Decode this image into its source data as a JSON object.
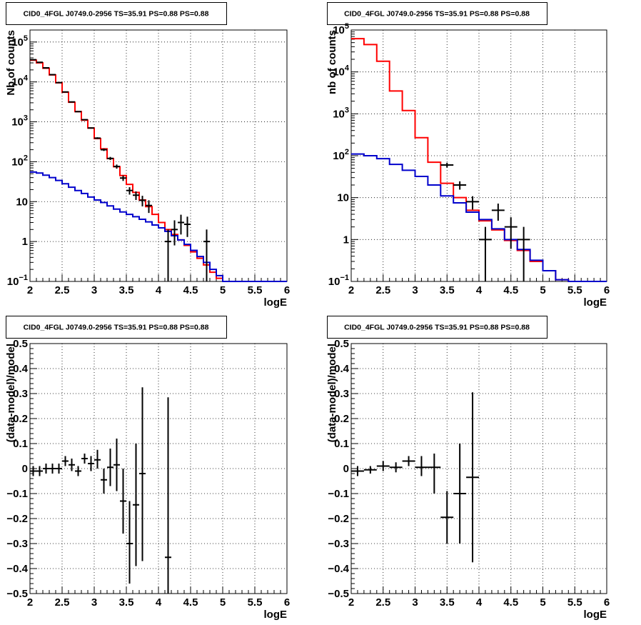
{
  "canvas": {
    "background": "#ffffff"
  },
  "chart_data": [
    {
      "type": "line",
      "title": "CID0_4FGL J0749.0-2956 TS=35.91 PS=0.88 PS=0.88",
      "xlabel": "logE",
      "ylabel": "Nb of counts",
      "xlim": [
        2,
        6
      ],
      "ylim": [
        0.1,
        200000
      ],
      "yscale": "log",
      "grid": true,
      "x_ticks": [
        "2",
        "2.5",
        "3",
        "3.5",
        "4",
        "4.5",
        "5",
        "5.5",
        "6"
      ],
      "y_ticks": [
        {
          "v": 0.1,
          "base": "10",
          "exp": "−1"
        },
        {
          "v": 1,
          "text": "1"
        },
        {
          "v": 10,
          "text": "10"
        },
        {
          "v": 100,
          "base": "10",
          "exp": "2"
        },
        {
          "v": 1000,
          "base": "10",
          "exp": "3"
        },
        {
          "v": 10000,
          "base": "10",
          "exp": "4"
        },
        {
          "v": 100000,
          "base": "10",
          "exp": "5"
        }
      ],
      "series": [
        {
          "color": "#ff0000",
          "style": "step",
          "bin_edges": [
            2,
            2.1,
            2.2,
            2.3,
            2.4,
            2.5,
            2.6,
            2.7,
            2.8,
            2.9,
            3,
            3.1,
            3.2,
            3.3,
            3.4,
            3.5,
            3.6,
            3.7,
            3.8,
            3.9,
            4,
            4.1,
            4.2,
            4.3,
            4.4,
            4.5,
            4.6,
            4.7,
            4.8,
            4.9,
            5,
            5.1,
            5.2,
            5.3,
            5.4,
            5.5,
            5.6,
            5.7,
            5.8,
            5.9,
            6
          ],
          "values": [
            35000,
            30000,
            22000,
            15000,
            9500,
            5500,
            3100,
            1800,
            1100,
            700,
            380,
            210,
            120,
            75,
            45,
            27,
            17,
            11,
            7.5,
            4.8,
            3.0,
            2.0,
            1.5,
            1.1,
            0.8,
            0.55,
            0.38,
            0.26,
            0.17,
            0.12,
            0.1,
            0.1,
            0.1,
            0.1,
            0.1,
            0.1,
            0.1,
            0.1,
            0.1,
            0.1
          ]
        },
        {
          "color": "#0000cc",
          "style": "step",
          "bin_edges": [
            2,
            2.1,
            2.2,
            2.3,
            2.4,
            2.5,
            2.6,
            2.7,
            2.8,
            2.9,
            3,
            3.1,
            3.2,
            3.3,
            3.4,
            3.5,
            3.6,
            3.7,
            3.8,
            3.9,
            4,
            4.1,
            4.2,
            4.3,
            4.4,
            4.5,
            4.6,
            4.7,
            4.8,
            4.9,
            5,
            5.1,
            5.2,
            5.3,
            5.4,
            5.5,
            5.6,
            5.7,
            5.8,
            5.9,
            6
          ],
          "values": [
            55,
            52,
            46,
            40,
            34,
            28,
            23,
            19,
            16,
            13,
            11,
            9.5,
            7.8,
            6.5,
            5.5,
            4.8,
            4.2,
            3.6,
            3.1,
            2.6,
            2.2,
            1.8,
            1.4,
            1.1,
            0.85,
            0.6,
            0.42,
            0.3,
            0.2,
            0.14,
            0.1,
            0.1,
            0.1,
            0.1,
            0.1,
            0.1,
            0.1,
            0.1,
            0.1,
            0.1
          ]
        },
        {
          "color": "#000000",
          "style": "points",
          "points": [
            {
              "x": 2.05,
              "y": 36000,
              "xerr": 0.05,
              "ylo": 35800,
              "yhi": 36200
            },
            {
              "x": 2.15,
              "y": 31000,
              "xerr": 0.05,
              "ylo": 30800,
              "yhi": 31200
            },
            {
              "x": 2.25,
              "y": 22500,
              "xerr": 0.05,
              "ylo": 22300,
              "yhi": 22700
            },
            {
              "x": 2.35,
              "y": 15200,
              "xerr": 0.05,
              "ylo": 15000,
              "yhi": 15400
            },
            {
              "x": 2.45,
              "y": 9600,
              "xerr": 0.05,
              "ylo": 9500,
              "yhi": 9700
            },
            {
              "x": 2.55,
              "y": 5600,
              "xerr": 0.05,
              "ylo": 5520,
              "yhi": 5680
            },
            {
              "x": 2.65,
              "y": 3150,
              "xerr": 0.05,
              "ylo": 3090,
              "yhi": 3210
            },
            {
              "x": 2.75,
              "y": 1800,
              "xerr": 0.05,
              "ylo": 1760,
              "yhi": 1840
            },
            {
              "x": 2.85,
              "y": 1130,
              "xerr": 0.05,
              "ylo": 1100,
              "yhi": 1160
            },
            {
              "x": 2.95,
              "y": 700,
              "xerr": 0.05,
              "ylo": 675,
              "yhi": 725
            },
            {
              "x": 3.05,
              "y": 390,
              "xerr": 0.05,
              "ylo": 370,
              "yhi": 410
            },
            {
              "x": 3.15,
              "y": 200,
              "xerr": 0.05,
              "ylo": 186,
              "yhi": 214
            },
            {
              "x": 3.25,
              "y": 121,
              "xerr": 0.05,
              "ylo": 110,
              "yhi": 132
            },
            {
              "x": 3.35,
              "y": 76,
              "xerr": 0.05,
              "ylo": 67,
              "yhi": 85
            },
            {
              "x": 3.45,
              "y": 39,
              "xerr": 0.05,
              "ylo": 33,
              "yhi": 45
            },
            {
              "x": 3.55,
              "y": 19,
              "xerr": 0.05,
              "ylo": 15,
              "yhi": 23
            },
            {
              "x": 3.65,
              "y": 14.5,
              "xerr": 0.05,
              "ylo": 11,
              "yhi": 18
            },
            {
              "x": 3.75,
              "y": 10.8,
              "xerr": 0.05,
              "ylo": 7.6,
              "yhi": 14
            },
            {
              "x": 3.85,
              "y": 8,
              "xerr": 0.05,
              "ylo": 5.2,
              "yhi": 10.8
            },
            {
              "x": 4.15,
              "y": 1,
              "xerr": 0.05,
              "ylo": 0.1,
              "yhi": 2.0
            },
            {
              "x": 4.25,
              "y": 2,
              "xerr": 0.05,
              "ylo": 0.8,
              "yhi": 3.4
            },
            {
              "x": 4.35,
              "y": 3,
              "xerr": 0.05,
              "ylo": 1.5,
              "yhi": 4.7
            },
            {
              "x": 4.45,
              "y": 2.7,
              "xerr": 0.05,
              "ylo": 1.3,
              "yhi": 4.2
            },
            {
              "x": 4.75,
              "y": 1,
              "xerr": 0.05,
              "ylo": 0.1,
              "yhi": 2.0
            }
          ]
        }
      ]
    },
    {
      "type": "line",
      "title": "CID0_4FGL J0749.0-2956 TS=35.91 PS=0.88 PS=0.88",
      "xlabel": "logE",
      "ylabel": "nb of counts",
      "xlim": [
        2,
        6
      ],
      "ylim": [
        0.1,
        100000
      ],
      "yscale": "log",
      "grid": true,
      "x_ticks": [
        "2",
        "2.5",
        "3",
        "3.5",
        "4",
        "4.5",
        "5",
        "5.5",
        "6"
      ],
      "y_ticks": [
        {
          "v": 0.1,
          "base": "10",
          "exp": "−1"
        },
        {
          "v": 1,
          "text": "1"
        },
        {
          "v": 10,
          "text": "10"
        },
        {
          "v": 100,
          "base": "10",
          "exp": "2"
        },
        {
          "v": 1000,
          "base": "10",
          "exp": "3"
        },
        {
          "v": 10000,
          "base": "10",
          "exp": "4"
        },
        {
          "v": 100000,
          "base": "10",
          "exp": "5"
        }
      ],
      "series": [
        {
          "color": "#ff0000",
          "style": "step",
          "bin_edges": [
            2,
            2.2,
            2.4,
            2.6,
            2.8,
            3,
            3.2,
            3.4,
            3.6,
            3.8,
            4,
            4.2,
            4.4,
            4.6,
            4.8,
            5,
            5.2,
            5.4,
            5.6,
            5.8,
            6
          ],
          "values": [
            62000,
            45000,
            18000,
            3500,
            1200,
            270,
            70,
            22,
            10,
            5,
            2.8,
            1.7,
            0.95,
            0.55,
            0.3,
            0.18,
            0.11,
            0.1,
            0.1,
            0.1
          ]
        },
        {
          "color": "#0000cc",
          "style": "step",
          "bin_edges": [
            2,
            2.2,
            2.4,
            2.6,
            2.8,
            3,
            3.2,
            3.4,
            3.6,
            3.8,
            4,
            4.2,
            4.4,
            4.6,
            4.8,
            5,
            5.2,
            5.4,
            5.6,
            5.8,
            6
          ],
          "values": [
            110,
            100,
            85,
            62,
            45,
            32,
            20,
            11,
            7.5,
            4.5,
            3.0,
            1.8,
            1.0,
            0.58,
            0.32,
            0.18,
            0.11,
            0.1,
            0.1,
            0.1
          ]
        },
        {
          "color": "#000000",
          "style": "points",
          "points": [
            {
              "x": 3.5,
              "y": 60,
              "xerr": 0.1,
              "ylo": 52,
              "yhi": 68
            },
            {
              "x": 3.7,
              "y": 20,
              "xerr": 0.1,
              "ylo": 15.5,
              "yhi": 24.5
            },
            {
              "x": 3.9,
              "y": 8,
              "xerr": 0.1,
              "ylo": 5.2,
              "yhi": 10.8
            },
            {
              "x": 4.1,
              "y": 1,
              "xerr": 0.1,
              "ylo": 0.1,
              "yhi": 2.0
            },
            {
              "x": 4.3,
              "y": 5,
              "xerr": 0.1,
              "ylo": 2.8,
              "yhi": 7.2
            },
            {
              "x": 4.5,
              "y": 2,
              "xerr": 0.1,
              "ylo": 0.6,
              "yhi": 3.4
            },
            {
              "x": 4.7,
              "y": 1,
              "xerr": 0.1,
              "ylo": 0.1,
              "yhi": 2.0
            }
          ]
        }
      ]
    },
    {
      "type": "scatter",
      "title": "CID0_4FGL J0749.0-2956 TS=35.91 PS=0.88 PS=0.88",
      "xlabel": "logE",
      "ylabel": "(data-model)/model",
      "xlim": [
        2,
        6
      ],
      "ylim": [
        -0.5,
        0.5
      ],
      "yscale": "linear",
      "grid": true,
      "x_ticks": [
        "2",
        "2.5",
        "3",
        "3.5",
        "4",
        "4.5",
        "5",
        "5.5",
        "6"
      ],
      "y_ticks": [
        {
          "v": -0.5,
          "text": "−0.5"
        },
        {
          "v": -0.4,
          "text": "−0.4"
        },
        {
          "v": -0.3,
          "text": "−0.3"
        },
        {
          "v": -0.2,
          "text": "−0.2"
        },
        {
          "v": -0.1,
          "text": "−0.1"
        },
        {
          "v": 0,
          "text": "0"
        },
        {
          "v": 0.1,
          "text": "0.1"
        },
        {
          "v": 0.2,
          "text": "0.2"
        },
        {
          "v": 0.3,
          "text": "0.3"
        },
        {
          "v": 0.4,
          "text": "0.4"
        },
        {
          "v": 0.5,
          "text": "0.5"
        }
      ],
      "series": [
        {
          "color": "#000000",
          "style": "points",
          "points": [
            {
              "x": 2.05,
              "y": -0.01,
              "xerr": 0.05,
              "ylo": -0.03,
              "yhi": 0.01
            },
            {
              "x": 2.15,
              "y": -0.01,
              "xerr": 0.05,
              "ylo": -0.03,
              "yhi": 0.01
            },
            {
              "x": 2.25,
              "y": 0.0,
              "xerr": 0.05,
              "ylo": -0.02,
              "yhi": 0.02
            },
            {
              "x": 2.35,
              "y": 0.0,
              "xerr": 0.05,
              "ylo": -0.02,
              "yhi": 0.02
            },
            {
              "x": 2.45,
              "y": 0.0,
              "xerr": 0.05,
              "ylo": -0.02,
              "yhi": 0.02
            },
            {
              "x": 2.55,
              "y": 0.03,
              "xerr": 0.05,
              "ylo": 0.01,
              "yhi": 0.05
            },
            {
              "x": 2.65,
              "y": 0.015,
              "xerr": 0.05,
              "ylo": -0.01,
              "yhi": 0.04
            },
            {
              "x": 2.75,
              "y": -0.01,
              "xerr": 0.05,
              "ylo": -0.03,
              "yhi": 0.01
            },
            {
              "x": 2.85,
              "y": 0.04,
              "xerr": 0.05,
              "ylo": 0.02,
              "yhi": 0.06
            },
            {
              "x": 2.95,
              "y": 0.02,
              "xerr": 0.05,
              "ylo": -0.01,
              "yhi": 0.05
            },
            {
              "x": 3.05,
              "y": 0.035,
              "xerr": 0.05,
              "ylo": 0.0,
              "yhi": 0.075
            },
            {
              "x": 3.15,
              "y": -0.045,
              "xerr": 0.05,
              "ylo": -0.1,
              "yhi": 0.0
            },
            {
              "x": 3.25,
              "y": 0.005,
              "xerr": 0.05,
              "ylo": -0.07,
              "yhi": 0.08
            },
            {
              "x": 3.35,
              "y": 0.015,
              "xerr": 0.05,
              "ylo": -0.09,
              "yhi": 0.12
            },
            {
              "x": 3.45,
              "y": -0.13,
              "xerr": 0.05,
              "ylo": -0.26,
              "yhi": 0.0
            },
            {
              "x": 3.55,
              "y": -0.3,
              "xerr": 0.05,
              "ylo": -0.46,
              "yhi": -0.13
            },
            {
              "x": 3.65,
              "y": -0.145,
              "xerr": 0.05,
              "ylo": -0.39,
              "yhi": 0.1
            },
            {
              "x": 3.75,
              "y": -0.02,
              "xerr": 0.05,
              "ylo": -0.37,
              "yhi": 0.325
            },
            {
              "x": 4.15,
              "y": -0.355,
              "xerr": 0.05,
              "ylo": -0.5,
              "yhi": 0.285
            }
          ]
        }
      ]
    },
    {
      "type": "scatter",
      "title": "CID0_4FGL J0749.0-2956 TS=35.91 PS=0.88 PS=0.88",
      "xlabel": "logE",
      "ylabel": "(data-model)/model",
      "xlim": [
        2,
        6
      ],
      "ylim": [
        -0.5,
        0.5
      ],
      "yscale": "linear",
      "grid": true,
      "x_ticks": [
        "2",
        "2.5",
        "3",
        "3.5",
        "4",
        "4.5",
        "5",
        "5.5",
        "6"
      ],
      "y_ticks": [
        {
          "v": -0.5,
          "text": "−0.5"
        },
        {
          "v": -0.4,
          "text": "−0.4"
        },
        {
          "v": -0.3,
          "text": "−0.3"
        },
        {
          "v": -0.2,
          "text": "−0.2"
        },
        {
          "v": -0.1,
          "text": "−0.1"
        },
        {
          "v": 0,
          "text": "0"
        },
        {
          "v": 0.1,
          "text": "0.1"
        },
        {
          "v": 0.2,
          "text": "0.2"
        },
        {
          "v": 0.3,
          "text": "0.3"
        },
        {
          "v": 0.4,
          "text": "0.4"
        },
        {
          "v": 0.5,
          "text": "0.5"
        }
      ],
      "series": [
        {
          "color": "#000000",
          "style": "points",
          "points": [
            {
              "x": 2.1,
              "y": -0.01,
              "xerr": 0.1,
              "ylo": -0.03,
              "yhi": 0.01
            },
            {
              "x": 2.3,
              "y": -0.005,
              "xerr": 0.1,
              "ylo": -0.02,
              "yhi": 0.01
            },
            {
              "x": 2.5,
              "y": 0.01,
              "xerr": 0.1,
              "ylo": -0.01,
              "yhi": 0.03
            },
            {
              "x": 2.7,
              "y": 0.005,
              "xerr": 0.1,
              "ylo": -0.015,
              "yhi": 0.025
            },
            {
              "x": 2.9,
              "y": 0.03,
              "xerr": 0.1,
              "ylo": 0.01,
              "yhi": 0.05
            },
            {
              "x": 3.1,
              "y": 0.005,
              "xerr": 0.1,
              "ylo": -0.03,
              "yhi": 0.05
            },
            {
              "x": 3.3,
              "y": 0.005,
              "xerr": 0.1,
              "ylo": -0.1,
              "yhi": 0.06
            },
            {
              "x": 3.5,
              "y": -0.195,
              "xerr": 0.1,
              "ylo": -0.3,
              "yhi": -0.09
            },
            {
              "x": 3.7,
              "y": -0.1,
              "xerr": 0.1,
              "ylo": -0.3,
              "yhi": 0.1
            },
            {
              "x": 3.9,
              "y": -0.035,
              "xerr": 0.1,
              "ylo": -0.375,
              "yhi": 0.305
            }
          ]
        }
      ]
    }
  ]
}
